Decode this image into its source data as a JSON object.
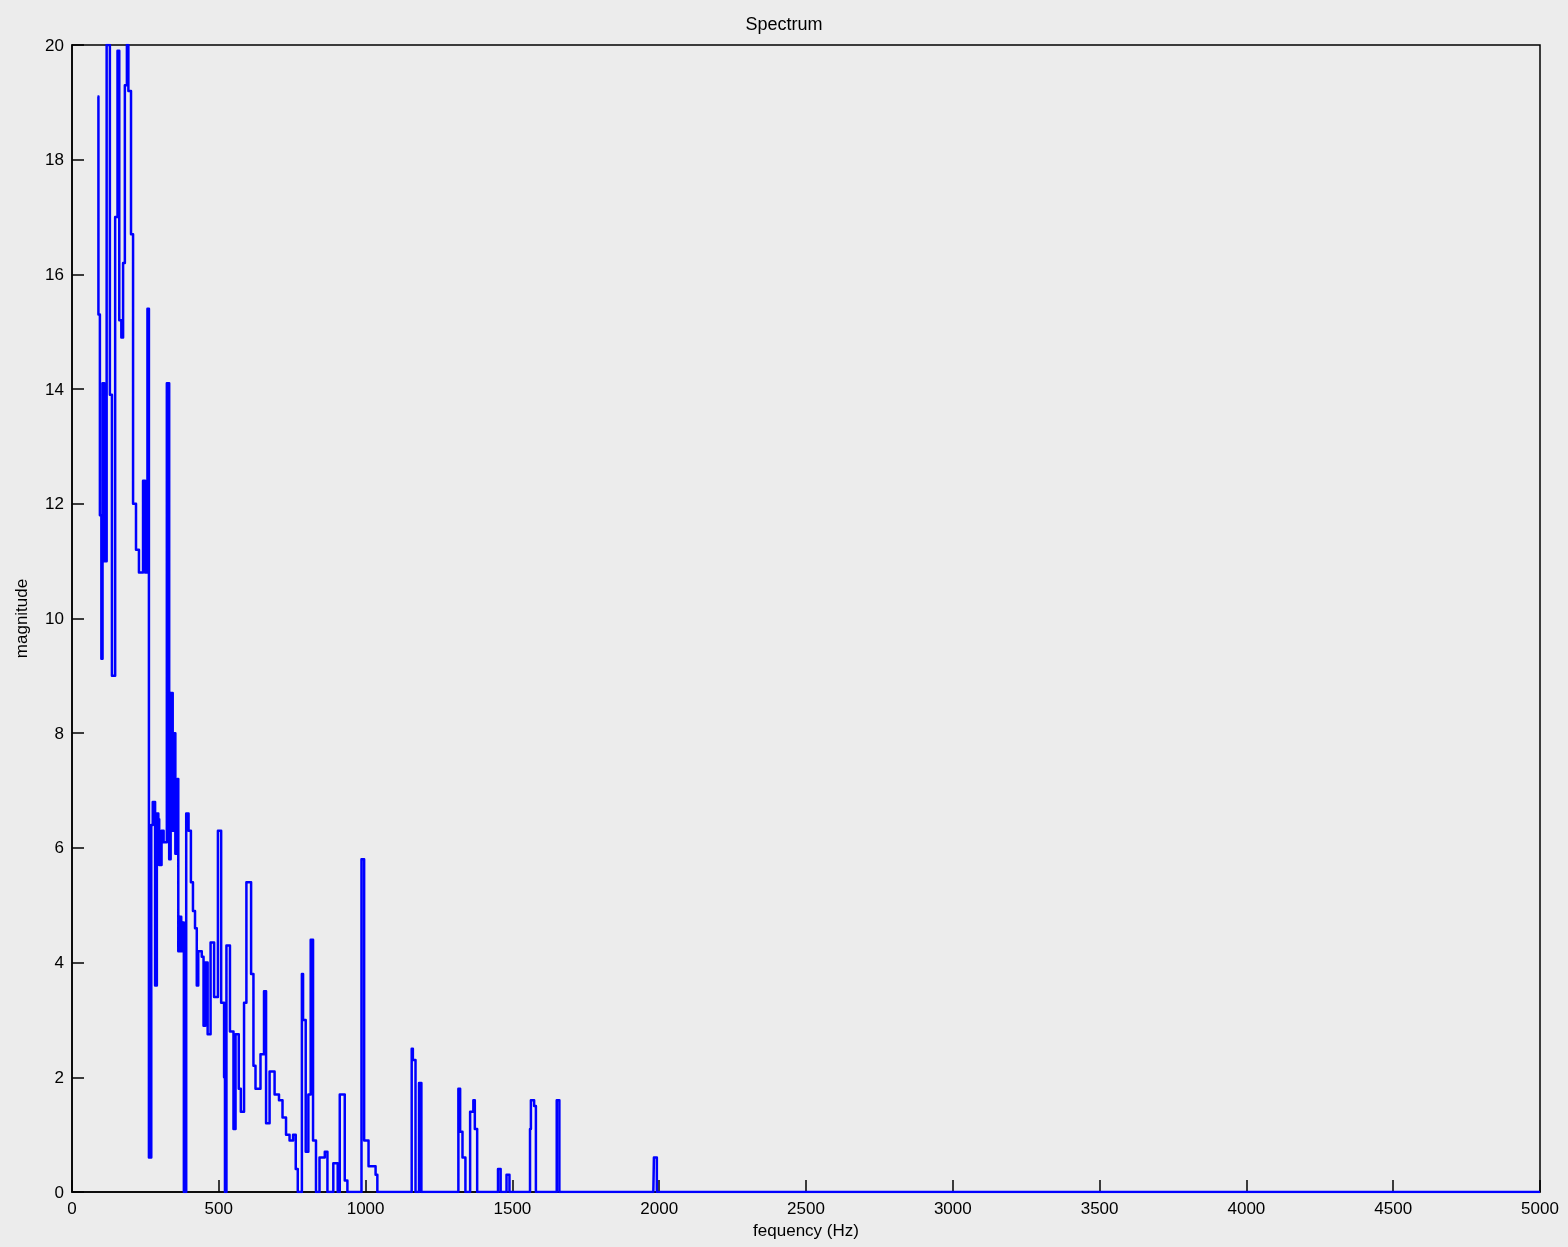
{
  "chart_data": {
    "type": "step",
    "title": "Spectrum",
    "xlabel": "fequency (Hz)",
    "ylabel": "magnitude",
    "color": "#0000ff",
    "marker": "none",
    "line_style": "solid",
    "grid": false,
    "xlim": [
      0,
      5000
    ],
    "xticks": [
      0,
      500,
      1000,
      1500,
      2000,
      2500,
      3000,
      3500,
      4000,
      4500,
      5000
    ],
    "ylim": [
      0,
      20
    ],
    "yticks": [
      0,
      2,
      4,
      6,
      8,
      10,
      12,
      14,
      16,
      18,
      20
    ],
    "x": [
      87,
      90,
      95,
      100,
      104,
      110,
      118,
      129,
      136,
      147,
      155,
      161,
      168,
      174,
      180,
      187,
      192,
      201,
      208,
      218,
      228,
      242,
      249,
      257,
      262,
      270,
      275,
      283,
      289,
      294,
      297,
      305,
      312,
      323,
      331,
      336,
      343,
      347,
      352,
      359,
      362,
      367,
      372,
      377,
      381,
      389,
      397,
      405,
      412,
      419,
      425,
      430,
      442,
      448,
      454,
      462,
      472,
      484,
      497,
      508,
      518,
      521,
      526,
      538,
      550,
      557,
      568,
      575,
      586,
      594,
      610,
      618,
      625,
      642,
      654,
      661,
      673,
      690,
      705,
      717,
      729,
      741,
      753,
      762,
      769,
      783,
      787,
      796,
      805,
      813,
      821,
      831,
      843,
      861,
      870,
      890,
      905,
      912,
      929,
      938,
      979,
      986,
      995,
      1010,
      1034,
      1040,
      1150,
      1157,
      1161,
      1170,
      1182,
      1190,
      1310,
      1316,
      1322,
      1330,
      1340,
      1356,
      1367,
      1372,
      1380,
      1448,
      1451,
      1460,
      1480,
      1490,
      1556,
      1560,
      1563,
      1574,
      1580,
      1648,
      1651,
      1660,
      1980,
      1982,
      1992,
      5000
    ],
    "values": [
      19.1,
      15.3,
      11.8,
      9.3,
      14.1,
      11.0,
      20,
      13.9,
      9.0,
      17.0,
      19.9,
      15.2,
      14.9,
      16.2,
      19.3,
      20,
      19.2,
      16.7,
      12.0,
      11.2,
      10.8,
      12.4,
      10.8,
      15.4,
      0.6,
      6.4,
      6.8,
      3.6,
      6.6,
      6.5,
      5.7,
      6.3,
      6.1,
      14.1,
      5.8,
      8.7,
      6.3,
      8.0,
      5.9,
      7.2,
      4.2,
      4.8,
      4.2,
      4.7,
      0,
      6.6,
      6.3,
      5.4,
      4.9,
      4.6,
      3.6,
      4.2,
      4.1,
      2.9,
      4.0,
      2.75,
      4.35,
      3.4,
      6.3,
      3.3,
      2.0,
      0,
      4.3,
      2.8,
      1.1,
      2.75,
      1.8,
      1.4,
      3.3,
      5.4,
      3.8,
      2.2,
      1.8,
      2.4,
      3.5,
      1.2,
      2.1,
      1.7,
      1.6,
      1.3,
      1.0,
      0.9,
      1.0,
      0.4,
      0,
      3.8,
      3.0,
      0.7,
      1.7,
      4.4,
      0.9,
      0,
      0.6,
      0.7,
      0,
      0.5,
      0,
      1.7,
      0.2,
      0,
      0,
      5.8,
      0.9,
      0.45,
      0.3,
      0,
      0,
      2.5,
      2.3,
      0,
      1.9,
      0,
      0,
      1.8,
      1.05,
      0.6,
      0,
      1.4,
      1.6,
      1.1,
      0,
      0,
      0.4,
      0,
      0.3,
      0,
      0,
      1.1,
      1.6,
      1.5,
      0,
      0,
      1.6,
      0,
      0,
      0.6,
      0,
      0
    ]
  }
}
